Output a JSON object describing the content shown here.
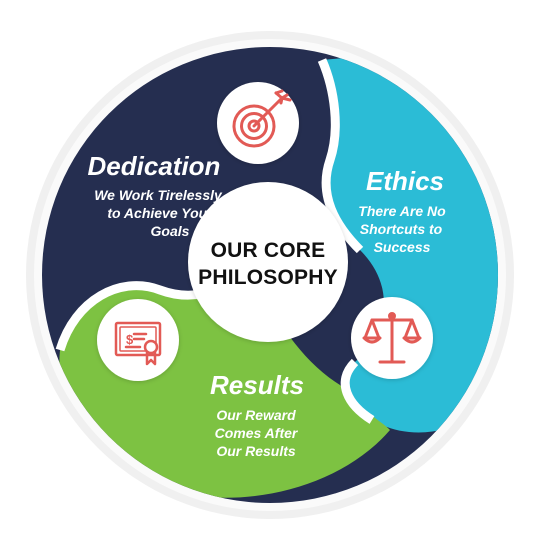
{
  "center": {
    "line1": "OUR CORE",
    "line2": "PHILOSOPHY"
  },
  "segments": [
    {
      "key": "dedication",
      "title": "Dedication",
      "lines": [
        "We Work Tirelessly",
        "to Achieve Your",
        "Goals"
      ],
      "color": "#252e50",
      "icon": "target-arrow-icon"
    },
    {
      "key": "ethics",
      "title": "Ethics",
      "lines": [
        "There Are No",
        "Shortcuts to",
        "Success"
      ],
      "color": "#2bbcd6",
      "icon": "balance-scale-icon"
    },
    {
      "key": "results",
      "title": "Results",
      "lines": [
        "Our Reward",
        "Comes After",
        "Our Results"
      ],
      "color": "#7dc242",
      "icon": "certificate-icon"
    }
  ],
  "colors": {
    "icon_stroke": "#e25a55",
    "outer_ring": "#eeeeee",
    "center_text": "#111111"
  }
}
